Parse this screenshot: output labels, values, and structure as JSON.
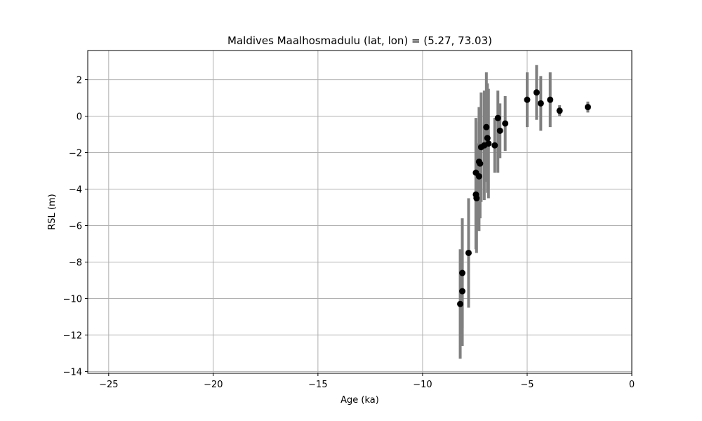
{
  "chart_data": {
    "type": "scatter",
    "title": "Maldives Maalhosmadulu (lat, lon) = (5.27, 73.03)",
    "xlabel": "Age (ka)",
    "ylabel": "RSL (m)",
    "xlim": [
      -26,
      0
    ],
    "ylim": [
      -14.1,
      3.6
    ],
    "xticks": [
      -25,
      -20,
      -15,
      -10,
      -5,
      0
    ],
    "yticks": [
      -14,
      -12,
      -10,
      -8,
      -6,
      -4,
      -2,
      0,
      2
    ],
    "grid": true,
    "colors": {
      "point": "#000000",
      "errorbar": "#808080",
      "grid": "#b0b0b0"
    },
    "points": [
      {
        "x": -8.2,
        "y": -10.3,
        "ylow": -13.3,
        "yhigh": -7.3
      },
      {
        "x": -8.1,
        "y": -9.6,
        "ylow": -12.6,
        "yhigh": -7.5
      },
      {
        "x": -8.1,
        "y": -8.6,
        "ylow": -11.6,
        "yhigh": -5.6
      },
      {
        "x": -7.8,
        "y": -7.5,
        "ylow": -10.5,
        "yhigh": -4.5
      },
      {
        "x": -7.45,
        "y": -4.3,
        "ylow": -7.3,
        "yhigh": -1.3
      },
      {
        "x": -7.42,
        "y": -4.5,
        "ylow": -7.5,
        "yhigh": -1.5
      },
      {
        "x": -7.45,
        "y": -3.1,
        "ylow": -6.1,
        "yhigh": -0.1
      },
      {
        "x": -7.3,
        "y": -3.3,
        "ylow": -6.3,
        "yhigh": -0.3
      },
      {
        "x": -7.3,
        "y": -2.5,
        "ylow": -5.5,
        "yhigh": 0.5
      },
      {
        "x": -7.25,
        "y": -2.6,
        "ylow": -5.6,
        "yhigh": 0.4
      },
      {
        "x": -7.2,
        "y": -1.7,
        "ylow": -4.7,
        "yhigh": 1.3
      },
      {
        "x": -7.05,
        "y": -1.6,
        "ylow": -4.6,
        "yhigh": 1.4
      },
      {
        "x": -6.95,
        "y": -0.6,
        "ylow": -3.6,
        "yhigh": 2.4
      },
      {
        "x": -6.9,
        "y": -1.2,
        "ylow": -4.2,
        "yhigh": 1.8
      },
      {
        "x": -6.85,
        "y": -1.5,
        "ylow": -4.5,
        "yhigh": 1.5
      },
      {
        "x": -6.55,
        "y": -1.6,
        "ylow": -3.1,
        "yhigh": -0.1
      },
      {
        "x": -6.4,
        "y": -0.1,
        "ylow": -3.1,
        "yhigh": 1.4
      },
      {
        "x": -6.3,
        "y": -0.8,
        "ylow": -2.3,
        "yhigh": 0.7
      },
      {
        "x": -6.05,
        "y": -0.4,
        "ylow": -1.9,
        "yhigh": 1.1
      },
      {
        "x": -5.0,
        "y": 0.9,
        "ylow": -0.6,
        "yhigh": 2.4
      },
      {
        "x": -4.55,
        "y": 1.3,
        "ylow": -0.2,
        "yhigh": 2.8
      },
      {
        "x": -4.35,
        "y": 0.7,
        "ylow": -0.8,
        "yhigh": 2.2
      },
      {
        "x": -3.9,
        "y": 0.9,
        "ylow": -0.6,
        "yhigh": 2.4
      },
      {
        "x": -3.45,
        "y": 0.3,
        "ylow": 0.0,
        "yhigh": 0.6
      },
      {
        "x": -2.1,
        "y": 0.5,
        "ylow": 0.2,
        "yhigh": 0.8
      }
    ]
  }
}
